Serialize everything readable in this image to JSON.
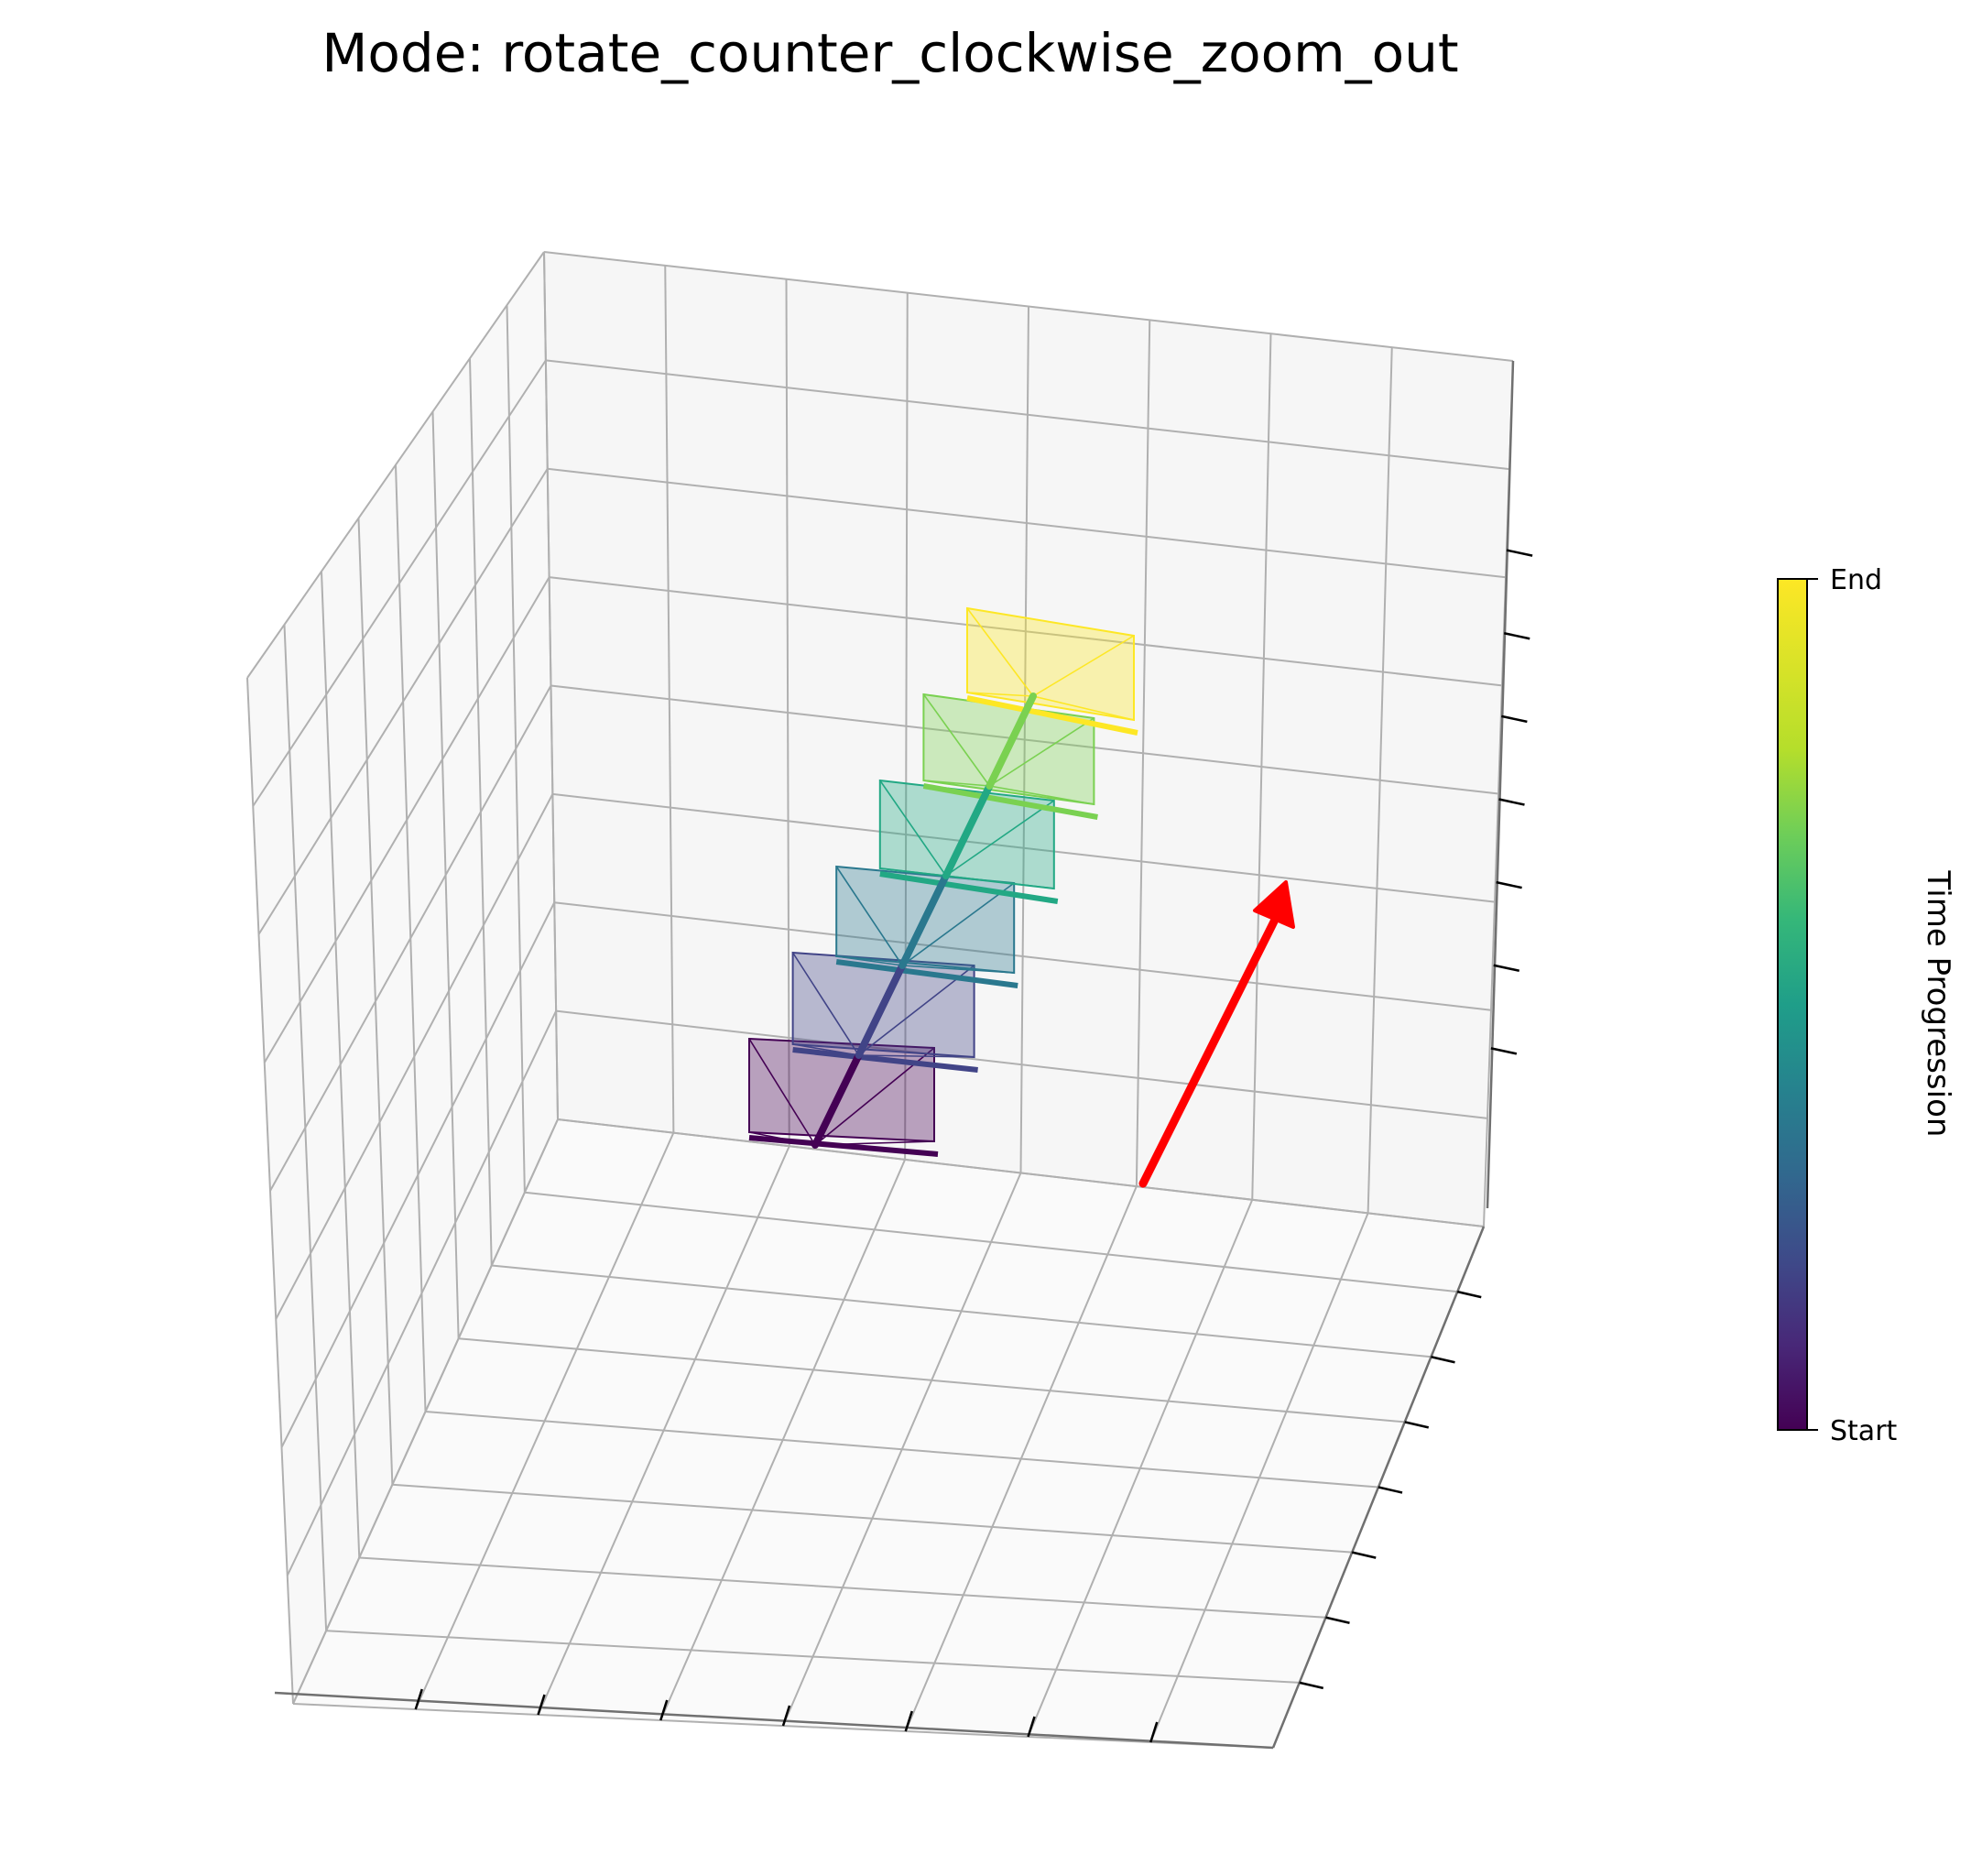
{
  "chart_data": {
    "type": "3d-camera-trajectory",
    "title": "Mode: rotate_counter_clockwise_zoom_out",
    "colorbar": {
      "label": "Time Progression",
      "colormap": "viridis",
      "tick_labels": [
        "Start",
        "End"
      ]
    },
    "grid": true,
    "axis_tick_labels_shown": false,
    "camera_frames": [
      {
        "t": 0.0,
        "color": "#440154"
      },
      {
        "t": 0.2,
        "color": "#414487"
      },
      {
        "t": 0.4,
        "color": "#2a788e"
      },
      {
        "t": 0.6,
        "color": "#22a884"
      },
      {
        "t": 0.8,
        "color": "#7ad151"
      },
      {
        "t": 1.0,
        "color": "#fde725"
      }
    ],
    "direction_arrow": {
      "color": "#ff0000"
    }
  }
}
